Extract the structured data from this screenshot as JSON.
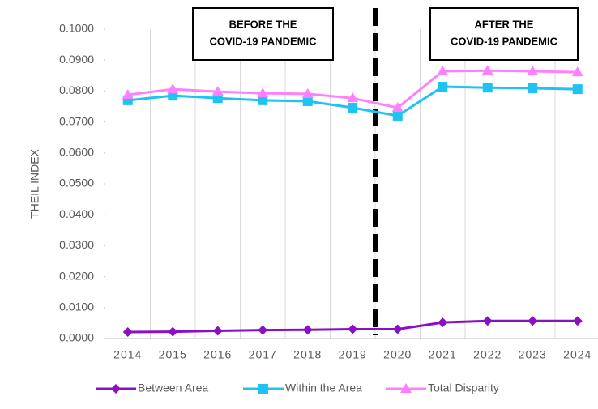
{
  "chart_data": {
    "type": "line",
    "y_label": "THEIL INDEX",
    "categories": [
      "2014",
      "2015",
      "2016",
      "2017",
      "2018",
      "2019",
      "2020",
      "2021",
      "2022",
      "2023",
      "2024"
    ],
    "series": [
      {
        "name": "Between Area",
        "color": "#8b10c4",
        "marker": "diamond",
        "values": [
          0.0021,
          0.0022,
          0.0025,
          0.0027,
          0.0028,
          0.003,
          0.003,
          0.0052,
          0.0057,
          0.0057,
          0.0057
        ]
      },
      {
        "name": "Within the Area",
        "color": "#1fc3f2",
        "marker": "square",
        "values": [
          0.077,
          0.0785,
          0.0777,
          0.077,
          0.0767,
          0.0746,
          0.072,
          0.0814,
          0.0811,
          0.0809,
          0.0806
        ]
      },
      {
        "name": "Total Disparity",
        "color": "#ff80ff",
        "marker": "triangle",
        "values": [
          0.0788,
          0.0806,
          0.0798,
          0.0793,
          0.0791,
          0.0777,
          0.0746,
          0.0864,
          0.0866,
          0.0864,
          0.0861
        ]
      }
    ],
    "ylim": [
      0,
      0.1
    ],
    "yticks": [
      {
        "value": 0,
        "label": "0.0000"
      },
      {
        "value": 0.01,
        "label": "0.0100"
      },
      {
        "value": 0.02,
        "label": "0.0200"
      },
      {
        "value": 0.03,
        "label": "0.0300"
      },
      {
        "value": 0.04,
        "label": "0.0400"
      },
      {
        "value": 0.05,
        "label": "0.0500"
      },
      {
        "value": 0.06,
        "label": "0.0600"
      },
      {
        "value": 0.07,
        "label": "0.0700"
      },
      {
        "value": 0.08,
        "label": "0.0800"
      },
      {
        "value": 0.09,
        "label": "0.0900"
      },
      {
        "value": 0.1,
        "label": "0.1000"
      }
    ],
    "annotations": [
      {
        "lines": [
          "BEFORE THE",
          "COVID-19 PANDEMIC"
        ]
      },
      {
        "lines": [
          "AFTER THE",
          "COVID-19 PANDEMIC"
        ]
      }
    ],
    "legend": "bottom"
  }
}
